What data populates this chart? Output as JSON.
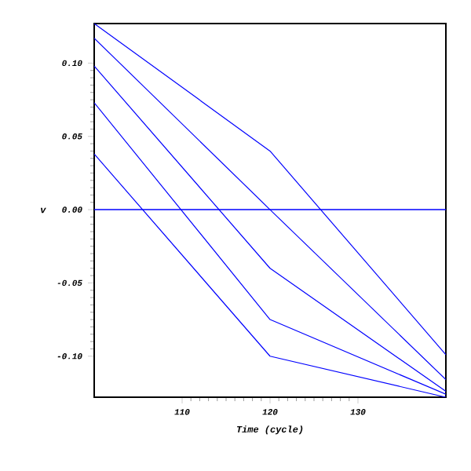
{
  "chart_data": {
    "type": "line",
    "xlabel": "Time (cycle)",
    "ylabel": "v",
    "x": [
      100,
      120,
      140
    ],
    "series": [
      {
        "color": "#0000ff",
        "values": [
          0.127,
          0.04,
          -0.099
        ]
      },
      {
        "color": "#0000ff",
        "values": [
          0.117,
          0.0,
          -0.116
        ]
      },
      {
        "color": "#0000ff",
        "values": [
          0.098,
          -0.04,
          -0.124
        ]
      },
      {
        "color": "#0000ff",
        "values": [
          0.073,
          -0.075,
          -0.126
        ]
      },
      {
        "color": "#0000ff",
        "values": [
          0.038,
          -0.1,
          -0.128
        ]
      }
    ],
    "ref_lines": [
      {
        "axis": "y",
        "value": 0,
        "color": "#0000ff"
      }
    ],
    "xlim": [
      100,
      140
    ],
    "ylim": [
      -0.128,
      0.127
    ],
    "xticks": [
      110,
      120,
      130
    ],
    "yticks": [
      {
        "value": -0.1,
        "label": "-0.10"
      },
      {
        "value": -0.05,
        "label": "-0.05"
      },
      {
        "value": 0,
        "label": "0.00"
      },
      {
        "value": 0.05,
        "label": "0.05"
      },
      {
        "value": 0.1,
        "label": "0.10"
      }
    ],
    "grid": false,
    "marker": "none",
    "line_style": "solid"
  }
}
